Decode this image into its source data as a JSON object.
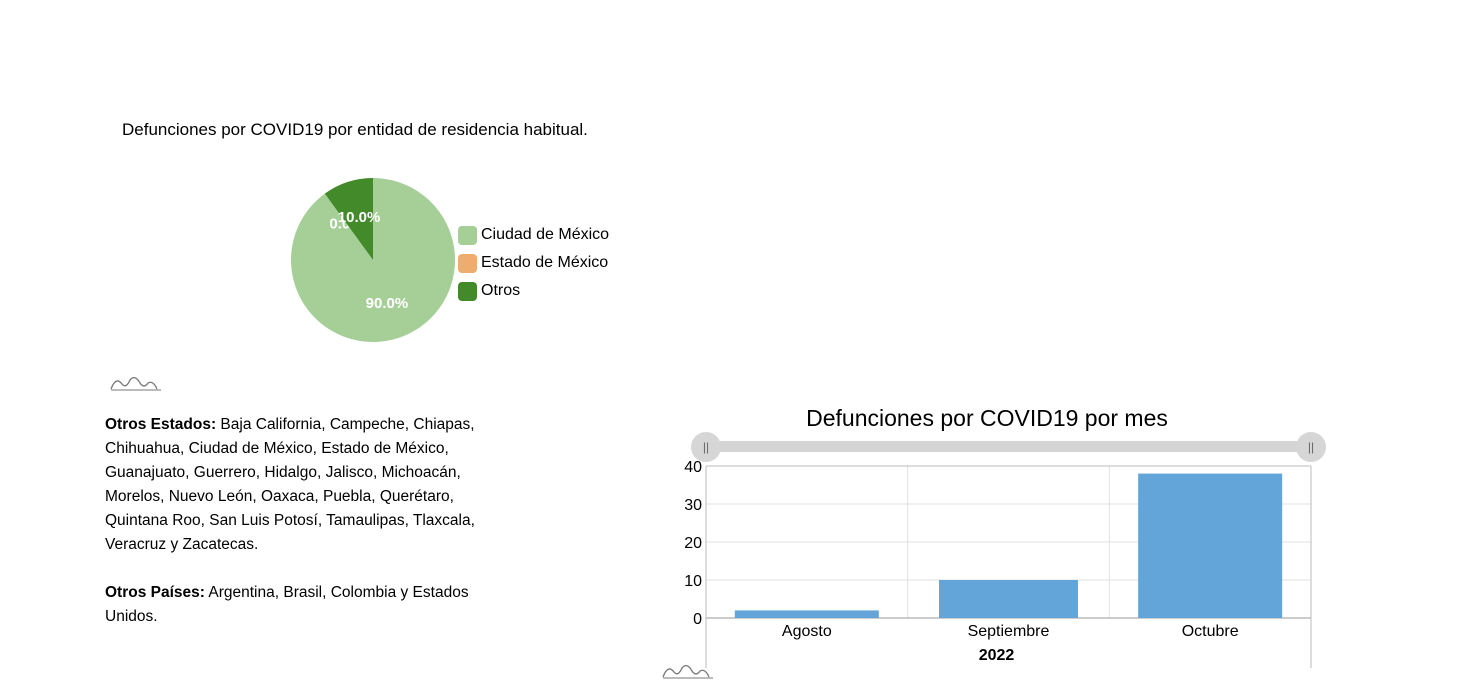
{
  "pie_title": "Defunciones por COVID19 por entidad de residencia habitual.",
  "bar_title": "Defunciones por COVID19 por mes",
  "notes": {
    "estados_label": "Otros Estados:",
    "estados_text": " Baja California, Campeche, Chiapas, Chihuahua, Ciudad de México, Estado de México, Guanajuato, Guerrero, Hidalgo, Jalisco, Michoacán, Morelos, Nuevo León, Oaxaca, Puebla, Querétaro, Quintana Roo, San Luis Potosí, Tamaulipas, Tlaxcala, Veracruz y Zacatecas.",
    "paises_label": "Otros Países:",
    "paises_text": " Argentina, Brasil, Colombia y Estados Unidos."
  },
  "range_slider": {
    "left_handle": "||",
    "right_handle": "||"
  },
  "chart_data": [
    {
      "type": "pie",
      "title": "Defunciones por COVID19 por entidad de residencia habitual.",
      "legend_position": "right",
      "slices": [
        {
          "label": "Ciudad de México",
          "value": 90.0,
          "display": "90.0%",
          "color": "#a6cf98"
        },
        {
          "label": "Estado de México",
          "value": 0.0,
          "display": "0.0%",
          "color": "#eead6f"
        },
        {
          "label": "Otros",
          "value": 10.0,
          "display": "10.0%",
          "color": "#428a2a"
        }
      ]
    },
    {
      "type": "bar",
      "title": "Defunciones por COVID19 por mes",
      "categories": [
        "Agosto",
        "Septiembre",
        "Octubre"
      ],
      "values": [
        2,
        10,
        38
      ],
      "xlabel": "2022",
      "ylabel": "",
      "ylim": [
        0,
        40
      ],
      "yticks": [
        0,
        10,
        20,
        30,
        40
      ],
      "grid": true,
      "bar_color": "#63a5d9"
    }
  ]
}
